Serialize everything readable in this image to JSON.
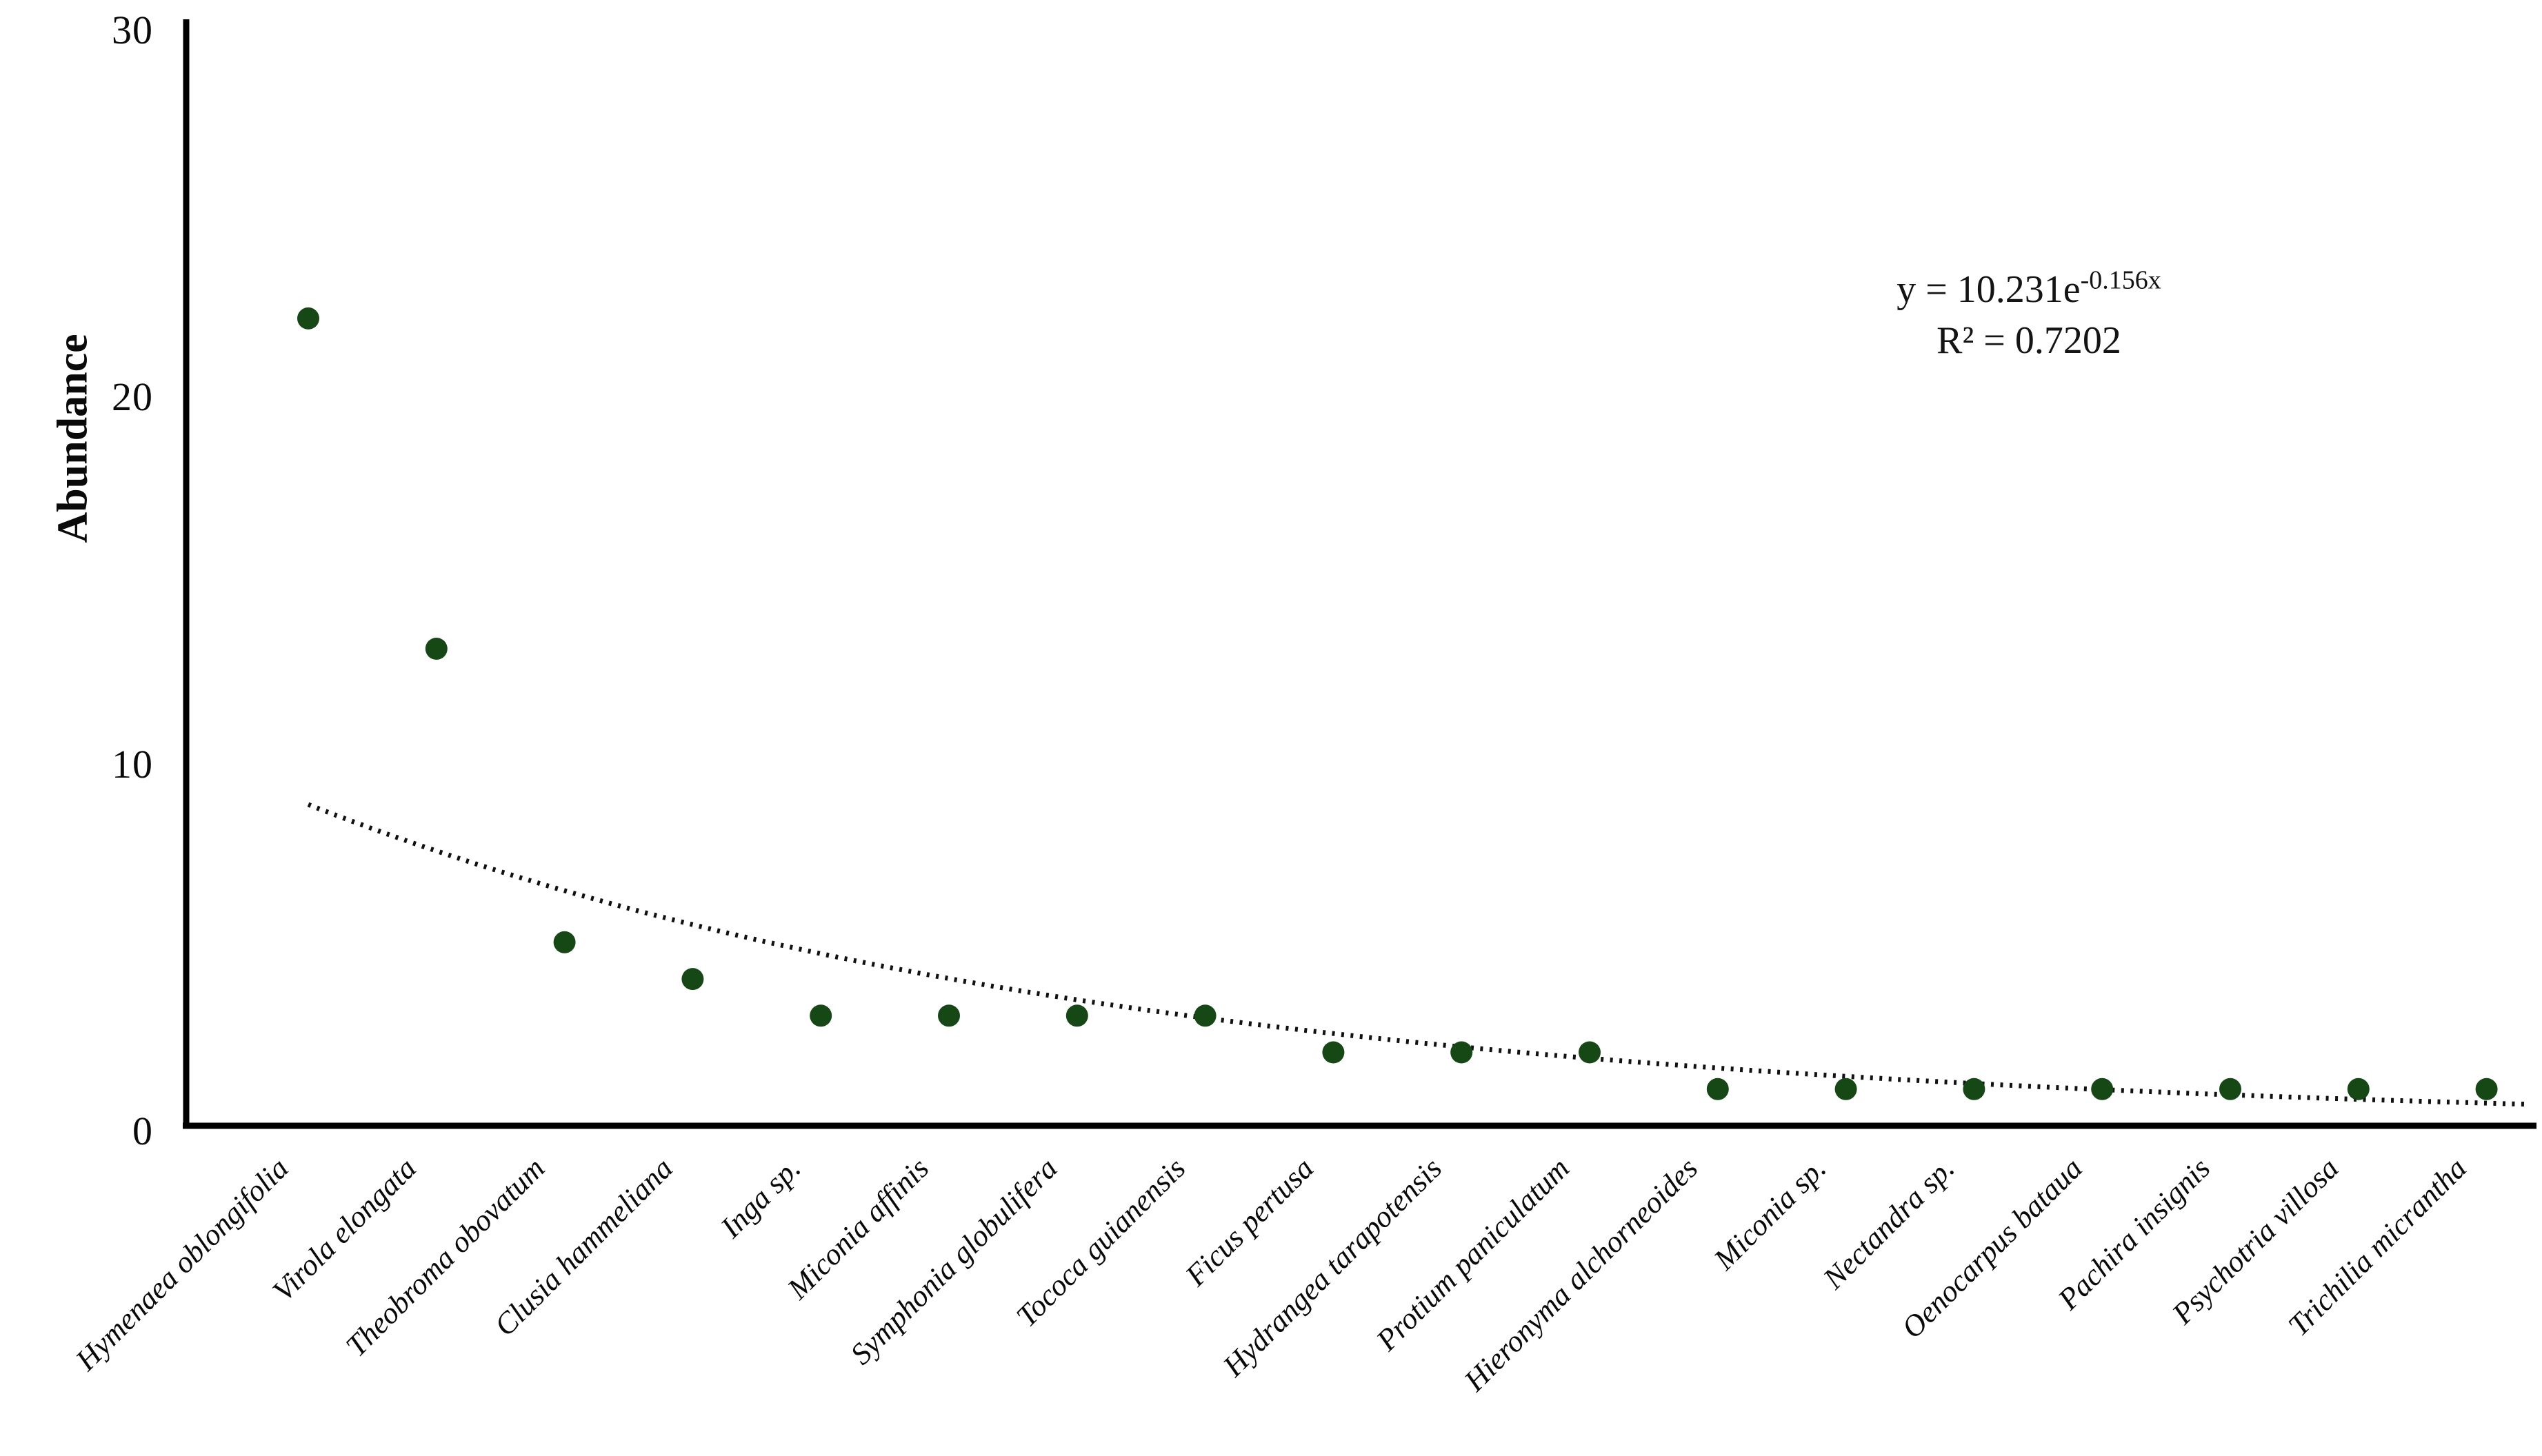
{
  "chart_data": {
    "type": "scatter",
    "title": "",
    "xlabel": "",
    "ylabel": "Abundance",
    "ylim": [
      0,
      30
    ],
    "yticks": [
      0,
      10,
      20,
      30
    ],
    "grid": false,
    "legend_position": "none",
    "point_color": "#164816",
    "trendline_color": "#111111",
    "axis_color": "#000000",
    "categories": [
      "Hymenaea oblongifolia",
      "Virola elongata",
      "Theobroma obovatum",
      "Clusia hammeliana",
      "Inga sp.",
      "Miconia affinis",
      "Symphonia globulifera",
      "Tococa guianensis",
      "Ficus pertusa",
      "Hydrangea tarapotensis",
      "Protium paniculatum",
      "Hieronyma alchorneoides",
      "Miconia sp.",
      "Nectandra sp.",
      "Oenocarpus bataua",
      "Pachira insignis",
      "Psychotria villosa",
      "Trichilia micrantha"
    ],
    "values": [
      22,
      13,
      5,
      4,
      3,
      3,
      3,
      3,
      2,
      2,
      2,
      1,
      1,
      1,
      1,
      1,
      1,
      1
    ],
    "trendline": {
      "type": "exponential",
      "coefficient": 10.231,
      "exponent_rate": -0.156,
      "equation_prefix": "y = 10.231e",
      "equation_exponent": "-0.156x",
      "r_squared_text": "R² = 0.7202",
      "style": "dotted",
      "x_start": 1,
      "x_end": 18.35
    }
  }
}
